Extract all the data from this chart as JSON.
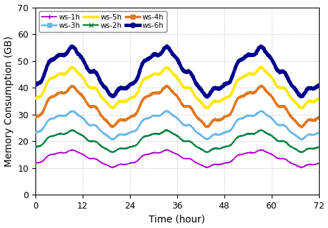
{
  "xlabel": "Time (hour)",
  "ylabel": "Memory Consumption (GB)",
  "xlim": [
    0,
    72
  ],
  "ylim": [
    0,
    70
  ],
  "xticks": [
    0,
    12,
    24,
    36,
    48,
    60,
    72
  ],
  "yticks": [
    0,
    10,
    20,
    30,
    40,
    50,
    60,
    70
  ],
  "series": [
    {
      "label": "ws-1h",
      "color": "#AA00CC",
      "linewidth": 1.3,
      "base": 13.5,
      "amplitude": 2.8,
      "marker": "+"
    },
    {
      "label": "ws-2h",
      "color": "#008040",
      "linewidth": 1.6,
      "base": 20.0,
      "amplitude": 3.5,
      "marker": "x"
    },
    {
      "label": "ws-3h",
      "color": "#6BB8E8",
      "linewidth": 1.9,
      "base": 26.0,
      "amplitude": 4.5,
      "marker": "s"
    },
    {
      "label": "ws-4h",
      "color": "#E07820",
      "linewidth": 2.5,
      "base": 33.0,
      "amplitude": 6.5,
      "marker": "s"
    },
    {
      "label": "ws-5h",
      "color": "#FFE800",
      "linewidth": 2.5,
      "base": 40.0,
      "amplitude": 6.5,
      "marker": "+"
    },
    {
      "label": "ws-6h",
      "color": "#00008B",
      "linewidth": 3.5,
      "base": 46.0,
      "amplitude": 8.0,
      "marker": "o"
    }
  ],
  "grid_color": "#b8b8b8",
  "grid_linestyle": ":",
  "background_color": "#ffffff",
  "legend_fontsize": 7.5,
  "axis_fontsize": 10,
  "tick_fontsize": 9,
  "marker_map": {
    "ws-1h": [
      "+",
      5
    ],
    "ws-2h": [
      "x",
      5
    ],
    "ws-3h": [
      "s",
      4
    ],
    "ws-4h": [
      "s",
      4
    ],
    "ws-5h": [
      "+",
      5
    ],
    "ws-6h": [
      "o",
      5
    ]
  }
}
